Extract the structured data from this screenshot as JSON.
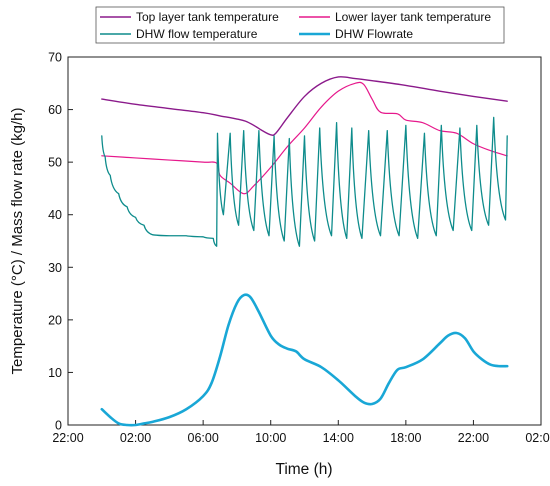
{
  "chart_data": {
    "type": "line",
    "xlabel": "Time (h)",
    "ylabel": "Temperature (°C) / Mass flow rate (kg/h)",
    "x_ticks": [
      "22:00",
      "02:00",
      "06:00",
      "10:00",
      "14:00",
      "18:00",
      "22:00",
      "02:00"
    ],
    "x_tick_values": [
      -2,
      2,
      6,
      10,
      14,
      18,
      22,
      26
    ],
    "xlim": [
      -2,
      26
    ],
    "ylim": [
      0,
      70
    ],
    "y_ticks": [
      0,
      10,
      20,
      30,
      40,
      50,
      60,
      70
    ],
    "grid": false,
    "legend_position": "top",
    "series": [
      {
        "name": "Top layer tank temperature",
        "color": "#8B1A8B",
        "width": 1.4,
        "points": [
          [
            0,
            62
          ],
          [
            2,
            61
          ],
          [
            4,
            60.2
          ],
          [
            6,
            59.4
          ],
          [
            7,
            58.8
          ],
          [
            8,
            58.2
          ],
          [
            8.5,
            57.8
          ],
          [
            9,
            57
          ],
          [
            9.5,
            56
          ],
          [
            10,
            55.2
          ],
          [
            10.3,
            55.5
          ],
          [
            11,
            58.5
          ],
          [
            12,
            62.5
          ],
          [
            13,
            65
          ],
          [
            14,
            66.2
          ],
          [
            15,
            65.9
          ],
          [
            16,
            65.5
          ],
          [
            18,
            64.6
          ],
          [
            20,
            63.5
          ],
          [
            22,
            62.5
          ],
          [
            24,
            61.6
          ]
        ]
      },
      {
        "name": "Lower layer tank temperature",
        "color": "#E6198C",
        "width": 1.2,
        "points": [
          [
            0,
            51.2
          ],
          [
            2,
            50.8
          ],
          [
            4,
            50.4
          ],
          [
            6,
            50
          ],
          [
            6.8,
            49.8
          ],
          [
            7,
            47.5
          ],
          [
            7.6,
            46
          ],
          [
            8.4,
            44
          ],
          [
            9,
            45.5
          ],
          [
            10,
            49
          ],
          [
            11,
            53
          ],
          [
            12,
            56.5
          ],
          [
            13,
            60.5
          ],
          [
            14,
            63.5
          ],
          [
            15,
            65
          ],
          [
            15.5,
            64.8
          ],
          [
            16,
            62
          ],
          [
            16.5,
            59.5
          ],
          [
            17.5,
            59.2
          ],
          [
            18,
            58
          ],
          [
            19,
            57.5
          ],
          [
            20,
            56
          ],
          [
            21,
            55.5
          ],
          [
            22,
            53.5
          ],
          [
            23,
            52.2
          ],
          [
            24,
            51.2
          ]
        ]
      },
      {
        "name": "DHW flow temperature",
        "color": "#0E8C8C",
        "width": 1.3,
        "points": [
          [
            0,
            55
          ],
          [
            0.2,
            51
          ],
          [
            0.5,
            47.5
          ],
          [
            1,
            44
          ],
          [
            1.5,
            41.5
          ],
          [
            2,
            39.5
          ],
          [
            2.5,
            38
          ],
          [
            3,
            36.2
          ],
          [
            4,
            36
          ],
          [
            5,
            36
          ],
          [
            6,
            35.8
          ],
          [
            6.6,
            35.5
          ],
          [
            6.8,
            34
          ],
          [
            6.85,
            55.5
          ],
          [
            7.2,
            40
          ],
          [
            7.6,
            55.5
          ],
          [
            8.1,
            38
          ],
          [
            8.4,
            56
          ],
          [
            9,
            37
          ],
          [
            9.3,
            56
          ],
          [
            9.9,
            36
          ],
          [
            10.2,
            55
          ],
          [
            10.8,
            35
          ],
          [
            11.1,
            54.5
          ],
          [
            11.7,
            34
          ],
          [
            12.0,
            55
          ],
          [
            12.6,
            35
          ],
          [
            12.9,
            56.5
          ],
          [
            13.6,
            36
          ],
          [
            13.9,
            57.5
          ],
          [
            14.5,
            35.5
          ],
          [
            14.8,
            56.5
          ],
          [
            15.4,
            35.5
          ],
          [
            15.8,
            56
          ],
          [
            16.5,
            36
          ],
          [
            16.9,
            56
          ],
          [
            17.6,
            36
          ],
          [
            18.0,
            57
          ],
          [
            18.7,
            35.5
          ],
          [
            19.1,
            55.5
          ],
          [
            19.8,
            36
          ],
          [
            20.1,
            57
          ],
          [
            20.8,
            37
          ],
          [
            21.2,
            56.5
          ],
          [
            21.9,
            37
          ],
          [
            22.2,
            57
          ],
          [
            22.9,
            38
          ],
          [
            23.2,
            58.5
          ],
          [
            23.9,
            39
          ],
          [
            24.0,
            55
          ]
        ]
      },
      {
        "name": "DHW Flowrate",
        "color": "#19A7D6",
        "width": 2.6,
        "points": [
          [
            0,
            3
          ],
          [
            0.5,
            1.5
          ],
          [
            1,
            0.3
          ],
          [
            1.5,
            0
          ],
          [
            2,
            0
          ],
          [
            2.5,
            0.3
          ],
          [
            3,
            0.6
          ],
          [
            4,
            1.5
          ],
          [
            5,
            3
          ],
          [
            6,
            5.5
          ],
          [
            6.5,
            8
          ],
          [
            7,
            13
          ],
          [
            7.5,
            19
          ],
          [
            8,
            23.2
          ],
          [
            8.4,
            24.7
          ],
          [
            8.8,
            24.3
          ],
          [
            9.3,
            21.5
          ],
          [
            10,
            17
          ],
          [
            10.5,
            15.3
          ],
          [
            11,
            14.5
          ],
          [
            11.5,
            14
          ],
          [
            12,
            12.5
          ],
          [
            13,
            11
          ],
          [
            14,
            8.5
          ],
          [
            15,
            5.5
          ],
          [
            15.5,
            4.3
          ],
          [
            16,
            4
          ],
          [
            16.5,
            5
          ],
          [
            17,
            8
          ],
          [
            17.5,
            10.5
          ],
          [
            18,
            11
          ],
          [
            19,
            12.5
          ],
          [
            20,
            15.5
          ],
          [
            20.5,
            17
          ],
          [
            21,
            17.5
          ],
          [
            21.5,
            16.5
          ],
          [
            22,
            14
          ],
          [
            22.5,
            12.5
          ],
          [
            23,
            11.5
          ],
          [
            23.5,
            11.2
          ],
          [
            24,
            11.2
          ]
        ]
      }
    ]
  }
}
